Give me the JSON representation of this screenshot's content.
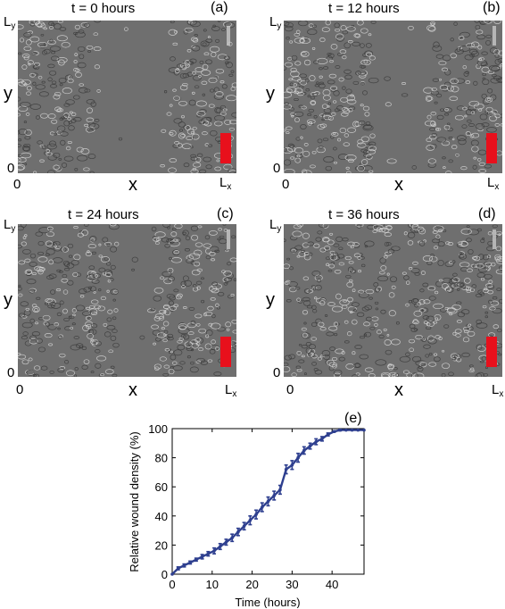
{
  "panels": [
    {
      "title": "t = 0 hours",
      "tag": "(a)",
      "y_top": "L",
      "y_top_sub": "y",
      "y_mid": "y",
      "y_zero": "0",
      "x_zero": "0",
      "x_mid": "x",
      "x_end": "L",
      "x_end_sub": "x",
      "healed": 0.0
    },
    {
      "title": "t = 12 hours",
      "tag": "(b)",
      "y_top": "L",
      "y_top_sub": "y",
      "y_mid": "y",
      "y_zero": "0",
      "x_zero": "0",
      "x_mid": "x",
      "x_end": "L",
      "x_end_sub": "x",
      "healed": 0.25
    },
    {
      "title": "t = 24 hours",
      "tag": "(c)",
      "y_top": "L",
      "y_top_sub": "y",
      "y_mid": "y",
      "y_zero": "0",
      "x_zero": "0",
      "x_mid": "x",
      "x_end": "L",
      "x_end_sub": "x",
      "healed": 0.5
    },
    {
      "title": "t = 36 hours",
      "tag": "(d)",
      "y_top": "L",
      "y_top_sub": "y",
      "y_mid": "y",
      "y_zero": "0",
      "x_zero": "0",
      "x_mid": "x",
      "x_end": "L",
      "x_end_sub": "x",
      "healed": 0.9
    }
  ],
  "colors": {
    "line": "#2e3f8f",
    "scale_bar": "#e8101c",
    "image_bg": "#6f6f6f"
  },
  "chart_data": {
    "type": "line",
    "tag": "(e)",
    "title": "",
    "xlabel": "Time (hours)",
    "ylabel": "Relative wound density (%)",
    "xlim": [
      0,
      48
    ],
    "ylim": [
      0,
      100
    ],
    "xticks": [
      "0",
      "10",
      "20",
      "30",
      "40"
    ],
    "yticks": [
      "0",
      "20",
      "40",
      "60",
      "80",
      "100"
    ],
    "grid": false,
    "error_bars": true,
    "series": [
      {
        "x": [
          0,
          1.5,
          3,
          4.5,
          6,
          7.5,
          9,
          10.5,
          12,
          13.5,
          15,
          16.5,
          18,
          19.5,
          21,
          22.5,
          24,
          25.5,
          27,
          28.5,
          30,
          31.5,
          33,
          34.5,
          36,
          37.5,
          39,
          40.5,
          42,
          43.5,
          45,
          46.5,
          48
        ],
        "y": [
          0,
          4,
          6,
          8,
          10,
          12,
          14,
          16,
          19,
          22,
          25,
          29,
          33,
          37,
          41,
          46,
          50,
          54,
          58,
          72,
          75,
          80,
          85,
          88,
          91,
          93,
          96,
          98,
          99,
          99,
          99,
          99,
          99
        ],
        "err": [
          0,
          1,
          1,
          1,
          1,
          1.5,
          1.5,
          2,
          2,
          2,
          2.5,
          2.5,
          2.5,
          3,
          3,
          3,
          3,
          3,
          3,
          3,
          3,
          3,
          2.5,
          2,
          2,
          1.5,
          1,
          0.5,
          0.5,
          0,
          0,
          0,
          0
        ]
      }
    ]
  }
}
